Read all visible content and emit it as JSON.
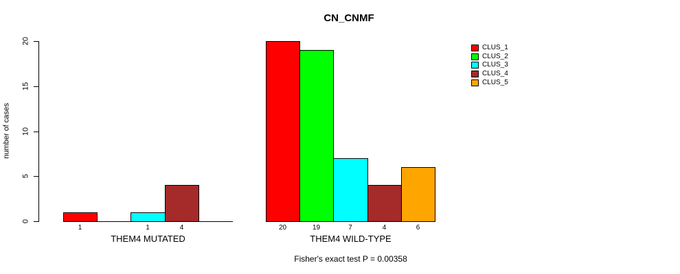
{
  "chart_data": {
    "type": "bar",
    "title": "CN_CNMF",
    "ylabel": "number of cases",
    "xlabel": "",
    "ylim": [
      0,
      20
    ],
    "yticks": [
      0,
      5,
      10,
      15,
      20
    ],
    "grid": false,
    "legend_position": "right",
    "categories": [
      "THEM4 MUTATED",
      "THEM4 WILD-TYPE"
    ],
    "series": [
      {
        "name": "CLUS_1",
        "color": "#ff0000",
        "values": [
          1,
          20
        ]
      },
      {
        "name": "CLUS_2",
        "color": "#00ff00",
        "values": [
          0,
          19
        ]
      },
      {
        "name": "CLUS_3",
        "color": "#00ffff",
        "values": [
          1,
          7
        ]
      },
      {
        "name": "CLUS_4",
        "color": "#a52a2a",
        "values": [
          4,
          4
        ]
      },
      {
        "name": "CLUS_5",
        "color": "#ffa500",
        "values": [
          0,
          6
        ]
      }
    ],
    "bar_value_labels": "shown under each non-zero bar",
    "annotation": "Fisher's exact test P = 0.00358",
    "axis_color": "#000000",
    "bar_border_color": "#000000"
  }
}
